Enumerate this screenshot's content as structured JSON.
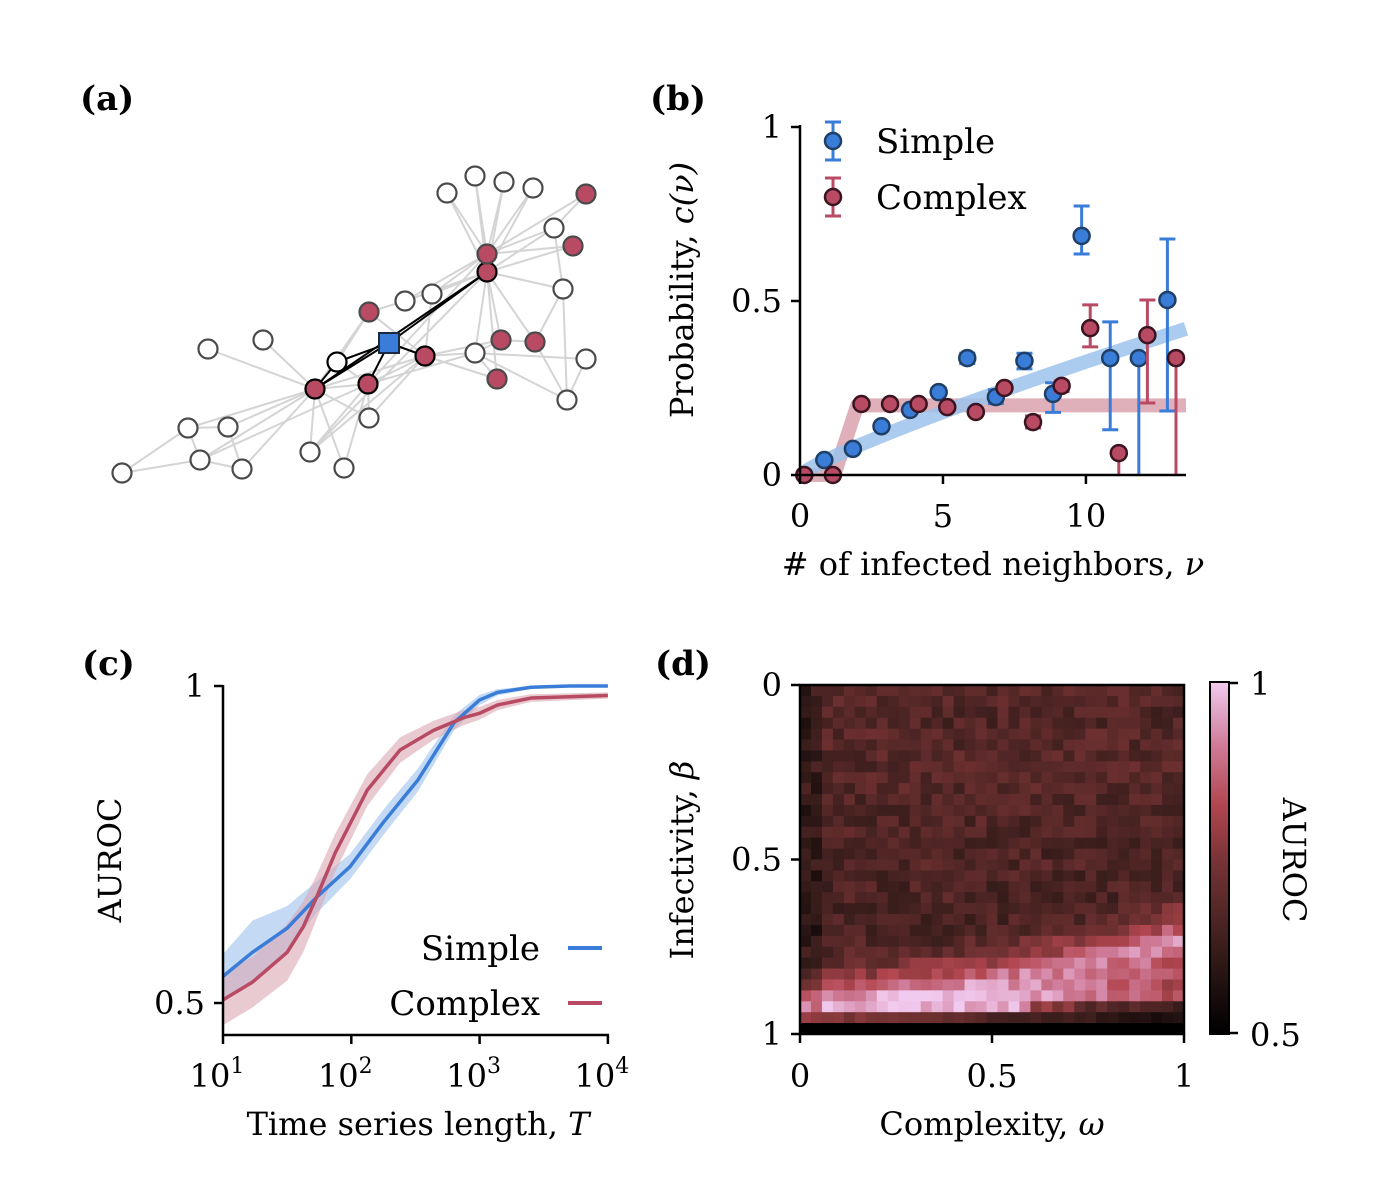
{
  "colors": {
    "simple": "#3a7dd8",
    "complex": "#b84b63",
    "simple_band": "#9cc2ec",
    "complex_band": "#dba7b3",
    "edge": "#d4d4d4",
    "highlight_edge": "#000000",
    "node_open": "#ffffff",
    "node_red": "#b84b63",
    "node_blue": "#3a7dd8",
    "colormap": [
      "#000000",
      "#3a1e1c",
      "#7a3436",
      "#b2464f",
      "#cf7b98",
      "#f1caef"
    ]
  },
  "panels": {
    "a": {
      "label": "(a)"
    },
    "b": {
      "label": "(b)"
    },
    "c": {
      "label": "(c)"
    },
    "d": {
      "label": "(d)"
    }
  },
  "network": {
    "nodes": [
      {
        "id": 0,
        "state": "open"
      },
      {
        "id": 1,
        "state": "open"
      },
      {
        "id": 2,
        "state": "open"
      },
      {
        "id": 3,
        "state": "open"
      },
      {
        "id": 4,
        "state": "open"
      },
      {
        "id": 5,
        "state": "open"
      },
      {
        "id": 6,
        "state": "open"
      },
      {
        "id": 7,
        "state": "infected",
        "highlight": true
      },
      {
        "id": 8,
        "state": "open",
        "highlight": true
      },
      {
        "id": 9,
        "state": "infected",
        "highlight": true
      },
      {
        "id": 10,
        "state": "infected"
      },
      {
        "id": 11,
        "state": "open"
      },
      {
        "id": 12,
        "state": "open"
      },
      {
        "id": 13,
        "state": "focal"
      },
      {
        "id": 14,
        "state": "infected",
        "highlight": true
      },
      {
        "id": 15,
        "state": "open"
      },
      {
        "id": 16,
        "state": "open"
      },
      {
        "id": 17,
        "state": "open"
      },
      {
        "id": 18,
        "state": "infected",
        "highlight": true
      },
      {
        "id": 19,
        "state": "infected"
      },
      {
        "id": 20,
        "state": "open"
      },
      {
        "id": 21,
        "state": "open"
      },
      {
        "id": 22,
        "state": "open"
      },
      {
        "id": 23,
        "state": "open"
      },
      {
        "id": 24,
        "state": "infected"
      },
      {
        "id": 25,
        "state": "open"
      },
      {
        "id": 26,
        "state": "infected"
      },
      {
        "id": 27,
        "state": "open"
      },
      {
        "id": 28,
        "state": "open"
      },
      {
        "id": 29,
        "state": "infected"
      },
      {
        "id": 30,
        "state": "infected"
      },
      {
        "id": 31,
        "state": "infected"
      },
      {
        "id": 32,
        "state": "open"
      },
      {
        "id": 33,
        "state": "open"
      }
    ],
    "edges": [
      [
        0,
        1
      ],
      [
        0,
        3
      ],
      [
        1,
        2
      ],
      [
        1,
        3
      ],
      [
        1,
        7
      ],
      [
        2,
        7
      ],
      [
        2,
        4
      ],
      [
        3,
        4
      ],
      [
        3,
        7
      ],
      [
        4,
        7
      ],
      [
        3,
        9
      ],
      [
        5,
        7
      ],
      [
        6,
        7
      ],
      [
        7,
        9
      ],
      [
        7,
        16
      ],
      [
        7,
        17
      ],
      [
        7,
        15
      ],
      [
        7,
        14
      ],
      [
        7,
        10
      ],
      [
        16,
        9
      ],
      [
        17,
        9
      ],
      [
        15,
        9
      ],
      [
        16,
        14
      ],
      [
        8,
        9
      ],
      [
        8,
        10
      ],
      [
        9,
        14
      ],
      [
        9,
        28
      ],
      [
        9,
        19
      ],
      [
        10,
        11
      ],
      [
        10,
        14
      ],
      [
        11,
        19
      ],
      [
        12,
        19
      ],
      [
        12,
        18
      ],
      [
        14,
        28
      ],
      [
        14,
        12
      ],
      [
        15,
        14
      ],
      [
        16,
        18
      ],
      [
        18,
        20
      ],
      [
        18,
        21
      ],
      [
        18,
        22
      ],
      [
        18,
        23
      ],
      [
        18,
        25
      ],
      [
        18,
        26
      ],
      [
        18,
        27
      ],
      [
        18,
        28
      ],
      [
        18,
        29
      ],
      [
        18,
        30
      ],
      [
        18,
        31
      ],
      [
        18,
        11
      ],
      [
        19,
        20
      ],
      [
        19,
        21
      ],
      [
        19,
        22
      ],
      [
        19,
        23
      ],
      [
        19,
        24
      ],
      [
        19,
        25
      ],
      [
        19,
        26
      ],
      [
        24,
        25
      ],
      [
        25,
        27
      ],
      [
        27,
        30
      ],
      [
        27,
        33
      ],
      [
        28,
        32
      ],
      [
        28,
        29
      ],
      [
        28,
        31
      ],
      [
        28,
        33
      ],
      [
        30,
        33
      ],
      [
        32,
        33
      ],
      [
        29,
        30
      ],
      [
        14,
        31
      ],
      [
        14,
        29
      ]
    ],
    "highlight_edges": [
      [
        13,
        18
      ],
      [
        13,
        8
      ],
      [
        13,
        7
      ],
      [
        13,
        9
      ],
      [
        13,
        14
      ],
      [
        8,
        7
      ],
      [
        7,
        18
      ]
    ]
  },
  "chart_data": [
    {
      "panel": "b",
      "type": "scatter",
      "xlabel": "# of infected neighbors, ν",
      "xlabel_plain": "# of infected neighbors, ",
      "xlabel_symbol": "ν",
      "ylabel_plain": "Probability, ",
      "ylabel_symbol": "c(ν)",
      "xlim": [
        0,
        13.5
      ],
      "ylim": [
        0,
        1
      ],
      "xticks": [
        0,
        5,
        10
      ],
      "xtick_labels": [
        "0",
        "5",
        "10"
      ],
      "yticks": [
        0,
        0.5,
        1
      ],
      "ytick_labels": [
        "0",
        "0.5",
        "1"
      ],
      "legend": {
        "position": "top-left",
        "entries": [
          "Simple",
          "Complex"
        ]
      },
      "series": [
        {
          "name": "Simple",
          "x": [
            1,
            2,
            3,
            4,
            5,
            6,
            7,
            8,
            9,
            10,
            11,
            12,
            13
          ],
          "y": [
            0.043,
            0.075,
            0.14,
            0.187,
            0.238,
            0.336,
            0.224,
            0.328,
            0.233,
            0.687,
            0.336,
            0.336,
            0.503
          ],
          "err_low": [
            0.043,
            0.075,
            0.14,
            0.187,
            0.23,
            0.32,
            0.205,
            0.305,
            0.18,
            0.635,
            0.13,
            0.0,
            0.184
          ],
          "err_high": [
            0.043,
            0.075,
            0.14,
            0.19,
            0.25,
            0.35,
            0.245,
            0.35,
            0.265,
            0.773,
            0.44,
            0.336,
            0.678
          ],
          "fit": {
            "x": [
              0,
              13.5
            ],
            "y": [
              0,
              0.42
            ],
            "shape": "concave"
          }
        },
        {
          "name": "Complex",
          "x": [
            0,
            1,
            2,
            3,
            4,
            5,
            6,
            7,
            8,
            9,
            10,
            11,
            12,
            13
          ],
          "y": [
            0.0,
            0.0,
            0.204,
            0.204,
            0.204,
            0.195,
            0.181,
            0.25,
            0.152,
            0.256,
            0.422,
            0.063,
            0.402,
            0.336
          ],
          "err_low": [
            0.0,
            0.0,
            0.204,
            0.204,
            0.204,
            0.19,
            0.175,
            0.24,
            0.135,
            0.24,
            0.368,
            0.0,
            0.207,
            0.0
          ],
          "err_high": [
            0.0,
            0.0,
            0.204,
            0.204,
            0.204,
            0.2,
            0.185,
            0.26,
            0.17,
            0.27,
            0.489,
            0.063,
            0.503,
            0.336
          ],
          "fit": {
            "x": [
              0,
              1.2,
              2,
              13.5
            ],
            "y": [
              0,
              0,
              0.2,
              0.2
            ]
          }
        }
      ]
    },
    {
      "panel": "c",
      "type": "line",
      "xlabel_plain": "Time series length, ",
      "xlabel_symbol": "T",
      "ylabel": "AUROC",
      "xscale": "log",
      "xlim": [
        10,
        10000
      ],
      "ylim": [
        0.45,
        1
      ],
      "xticks": [
        10,
        100,
        1000,
        10000
      ],
      "xtick_base": "10",
      "xtick_exp": [
        "1",
        "2",
        "3",
        "4"
      ],
      "yticks": [
        0.5,
        1
      ],
      "ytick_labels": [
        "0.5",
        "1"
      ],
      "legend": {
        "position": "bottom-right",
        "entries": [
          "Simple",
          "Complex"
        ]
      },
      "series": [
        {
          "name": "Simple",
          "log10_x": [
            1.0,
            1.23,
            1.5,
            1.73,
            1.99,
            2.25,
            2.52,
            2.8,
            3.0,
            3.14,
            3.4,
            3.7,
            4.0
          ],
          "y": [
            0.542,
            0.58,
            0.618,
            0.667,
            0.715,
            0.785,
            0.852,
            0.942,
            0.978,
            0.99,
            0.998,
            1.0,
            1.0
          ],
          "band": [
            0.035,
            0.05,
            0.035,
            0.025,
            0.02,
            0.02,
            0.018,
            0.012,
            0.008,
            0.005,
            0.003,
            0.002,
            0.002
          ]
        },
        {
          "name": "Complex",
          "log10_x": [
            1.0,
            1.23,
            1.5,
            1.625,
            1.73,
            1.875,
            2.125,
            2.38,
            2.64,
            2.875,
            3.0,
            3.14,
            3.4,
            4.0
          ],
          "y": [
            0.505,
            0.533,
            0.58,
            0.62,
            0.667,
            0.737,
            0.836,
            0.899,
            0.93,
            0.95,
            0.957,
            0.97,
            0.981,
            0.985
          ],
          "band": [
            0.04,
            0.04,
            0.045,
            0.04,
            0.035,
            0.03,
            0.025,
            0.02,
            0.015,
            0.012,
            0.01,
            0.008,
            0.006,
            0.005
          ]
        }
      ]
    },
    {
      "panel": "d",
      "type": "heatmap",
      "xlabel_plain": "Complexity, ",
      "xlabel_symbol": "ω",
      "ylabel_plain": "Infectivity, ",
      "ylabel_symbol": "β",
      "xlim": [
        0,
        1
      ],
      "ylim": [
        0,
        1
      ],
      "xticks": [
        0,
        0.5,
        1
      ],
      "xtick_labels": [
        "0",
        "0.5",
        "1"
      ],
      "yticks": [
        0,
        0.5,
        1
      ],
      "ytick_labels": [
        "0",
        "0.5",
        "1"
      ],
      "y_inverted": true,
      "n_cols": 35,
      "n_rows": 32,
      "colorbar": {
        "label": "AUROC",
        "range": [
          0.5,
          1
        ],
        "tick_labels": [
          "0.5",
          "1"
        ]
      },
      "values_description": "AUROC grid rows top (β=0) to bottom (β=1); mostly 0.6–0.75, bright band 0.85–1.0 near β≈0.85–0.95 rising toward high ω, bottom row ≈0.5",
      "row_base": [
        0.68,
        0.68,
        0.67,
        0.67,
        0.68,
        0.68,
        0.68,
        0.68,
        0.68,
        0.68,
        0.67,
        0.67,
        0.67,
        0.67,
        0.66,
        0.66,
        0.67,
        0.66,
        0.66,
        0.66,
        0.66,
        0.66,
        0.66,
        0.67,
        0.68,
        0.7,
        0.73,
        0.78,
        0.84,
        0.88,
        0.72,
        0.5
      ],
      "seed": 7
    }
  ]
}
